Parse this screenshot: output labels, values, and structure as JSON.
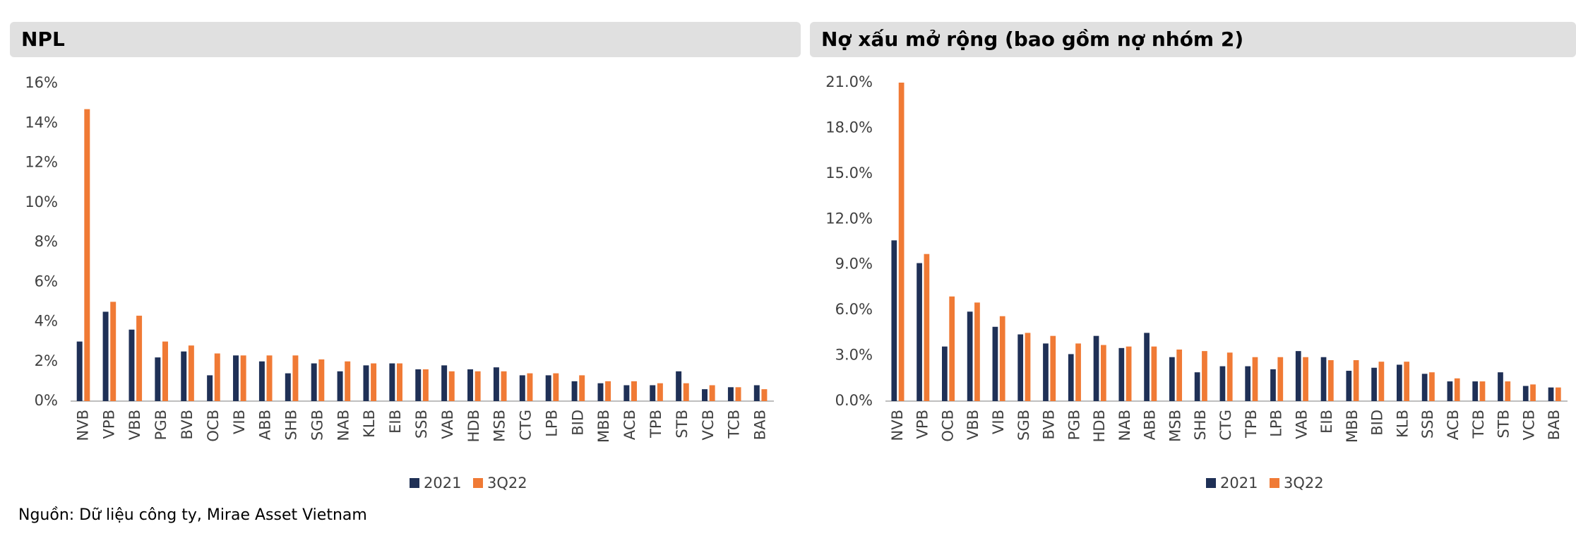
{
  "chart_data": [
    {
      "type": "bar",
      "title": "NPL",
      "categories": [
        "NVB",
        "VPB",
        "VBB",
        "PGB",
        "BVB",
        "OCB",
        "VIB",
        "ABB",
        "SHB",
        "SGB",
        "NAB",
        "KLB",
        "EIB",
        "SSB",
        "VAB",
        "HDB",
        "MSB",
        "CTG",
        "LPB",
        "BID",
        "MBB",
        "ACB",
        "TPB",
        "STB",
        "VCB",
        "TCB",
        "BAB"
      ],
      "series": [
        {
          "name": "2021",
          "color": "#1f3056",
          "values": [
            3.0,
            4.5,
            3.6,
            2.2,
            2.5,
            1.3,
            2.3,
            2.0,
            1.4,
            1.9,
            1.5,
            1.8,
            1.9,
            1.6,
            1.8,
            1.6,
            1.7,
            1.3,
            1.3,
            1.0,
            0.9,
            0.8,
            0.8,
            1.5,
            0.6,
            0.7,
            0.8
          ]
        },
        {
          "name": "3Q22",
          "color": "#f07a35",
          "values": [
            14.7,
            5.0,
            4.3,
            3.0,
            2.8,
            2.4,
            2.3,
            2.3,
            2.3,
            2.1,
            2.0,
            1.9,
            1.9,
            1.6,
            1.5,
            1.5,
            1.5,
            1.4,
            1.4,
            1.3,
            1.0,
            1.0,
            0.9,
            0.9,
            0.8,
            0.7,
            0.6
          ]
        }
      ],
      "ylim": [
        0,
        16
      ],
      "yticks": [
        {
          "value": 0,
          "label": "0%"
        },
        {
          "value": 2,
          "label": "2%"
        },
        {
          "value": 4,
          "label": "4%"
        },
        {
          "value": 6,
          "label": "6%"
        },
        {
          "value": 8,
          "label": "8%"
        },
        {
          "value": 10,
          "label": "10%"
        },
        {
          "value": 12,
          "label": "12%"
        },
        {
          "value": 14,
          "label": "14%"
        },
        {
          "value": 16,
          "label": "16%"
        }
      ],
      "grid": false
    },
    {
      "type": "bar",
      "title": "Nợ xấu mở rộng (bao gồm nợ nhóm 2)",
      "categories": [
        "NVB",
        "VPB",
        "OCB",
        "VBB",
        "VIB",
        "SGB",
        "BVB",
        "PGB",
        "HDB",
        "NAB",
        "ABB",
        "MSB",
        "SHB",
        "CTG",
        "TPB",
        "LPB",
        "VAB",
        "EIB",
        "MBB",
        "BID",
        "KLB",
        "SSB",
        "ACB",
        "TCB",
        "STB",
        "VCB",
        "BAB"
      ],
      "series": [
        {
          "name": "2021",
          "color": "#1f3056",
          "values": [
            10.6,
            9.1,
            3.6,
            5.9,
            4.9,
            4.4,
            3.8,
            3.1,
            4.3,
            3.5,
            4.5,
            2.9,
            1.9,
            2.3,
            2.3,
            2.1,
            3.3,
            2.9,
            2.0,
            2.2,
            2.4,
            1.8,
            1.3,
            1.3,
            1.9,
            1.0,
            0.9
          ]
        },
        {
          "name": "3Q22",
          "color": "#f07a35",
          "values": [
            21.0,
            9.7,
            6.9,
            6.5,
            5.6,
            4.5,
            4.3,
            3.8,
            3.7,
            3.6,
            3.6,
            3.4,
            3.3,
            3.2,
            2.9,
            2.9,
            2.9,
            2.7,
            2.7,
            2.6,
            2.6,
            1.9,
            1.5,
            1.3,
            1.3,
            1.1,
            0.9
          ]
        }
      ],
      "ylim": [
        0,
        21
      ],
      "yticks": [
        {
          "value": 0,
          "label": "0.0%"
        },
        {
          "value": 3,
          "label": "3.0%"
        },
        {
          "value": 6,
          "label": "6.0%"
        },
        {
          "value": 9,
          "label": "9.0%"
        },
        {
          "value": 12,
          "label": "12.0%"
        },
        {
          "value": 15,
          "label": "15.0%"
        },
        {
          "value": 18,
          "label": "18.0%"
        },
        {
          "value": 21,
          "label": "21.0%"
        }
      ],
      "grid": false
    }
  ],
  "source": "Nguồn: Dữ liệu công ty, Mirae Asset Vietnam"
}
